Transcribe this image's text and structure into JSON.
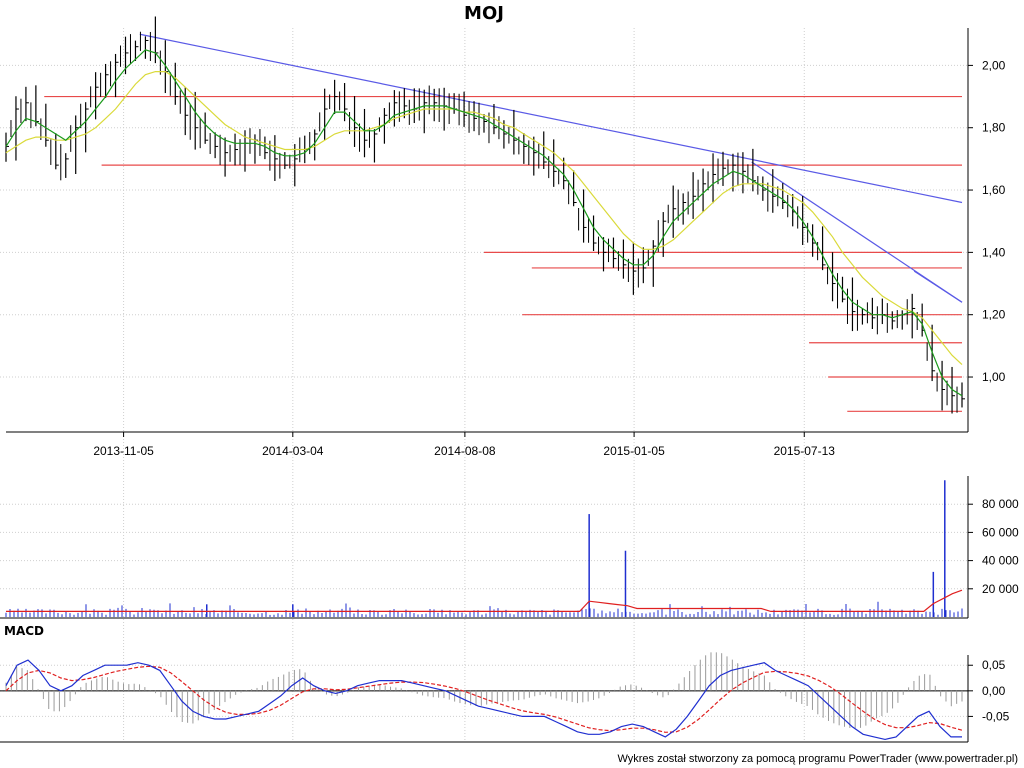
{
  "title": "MOJ",
  "footer": "Wykres został stworzony za pomocą programu PowerTrader (www.powertrader.pl)",
  "colors": {
    "price_bar": "#000000",
    "sma_short": "#1a9a1a",
    "sma_long": "#dada3a",
    "trendline": "#5a5ae6",
    "support_line": "#e84a4a",
    "volume_bar": "#1f2fd0",
    "volume_avg": "#e02020",
    "macd_line": "#1f2fd0",
    "signal_line": "#e02020",
    "histogram": "#9a9a9a"
  },
  "chart_data": [
    {
      "panel": "price",
      "type": "ohlc",
      "title": "MOJ",
      "x_tick_labels": [
        "2013-11-05",
        "2014-03-04",
        "2014-08-08",
        "2015-01-05",
        "2015-07-13"
      ],
      "y_tick_labels": [
        "2,00",
        "1,80",
        "1,60",
        "1,40",
        "1,20",
        "1,00"
      ],
      "ylim": [
        0.83,
        2.12
      ],
      "grid": true,
      "series": [
        {
          "role": "close_bars",
          "values": [
            1.74,
            1.86,
            1.88,
            1.82,
            1.76,
            1.68,
            1.7,
            1.8,
            1.86,
            1.93,
            1.97,
            2.01,
            2.04,
            2.06,
            2.08,
            2.04,
            1.98,
            1.9,
            1.84,
            1.8,
            1.76,
            1.74,
            1.72,
            1.73,
            1.75,
            1.76,
            1.72,
            1.7,
            1.68,
            1.7,
            1.73,
            1.78,
            1.86,
            1.9,
            1.86,
            1.8,
            1.76,
            1.78,
            1.84,
            1.88,
            1.87,
            1.86,
            1.88,
            1.88,
            1.87,
            1.86,
            1.84,
            1.83,
            1.82,
            1.8,
            1.78,
            1.76,
            1.74,
            1.72,
            1.69,
            1.66,
            1.63,
            1.56,
            1.48,
            1.43,
            1.4,
            1.38,
            1.36,
            1.34,
            1.35,
            1.42,
            1.5,
            1.54,
            1.56,
            1.58,
            1.62,
            1.65,
            1.67,
            1.68,
            1.66,
            1.63,
            1.6,
            1.58,
            1.56,
            1.53,
            1.48,
            1.43,
            1.36,
            1.3,
            1.25,
            1.21,
            1.2,
            1.19,
            1.2,
            1.18,
            1.2,
            1.22,
            1.15,
            1.02,
            0.96,
            0.94,
            0.93
          ]
        },
        {
          "role": "short_moving_average",
          "values": [
            1.74,
            1.79,
            1.83,
            1.82,
            1.8,
            1.78,
            1.76,
            1.79,
            1.82,
            1.86,
            1.9,
            1.95,
            1.99,
            2.02,
            2.05,
            2.04,
            2.0,
            1.95,
            1.9,
            1.85,
            1.81,
            1.78,
            1.76,
            1.75,
            1.75,
            1.75,
            1.74,
            1.72,
            1.71,
            1.71,
            1.72,
            1.75,
            1.8,
            1.85,
            1.85,
            1.82,
            1.79,
            1.79,
            1.81,
            1.84,
            1.85,
            1.86,
            1.87,
            1.87,
            1.87,
            1.86,
            1.85,
            1.84,
            1.83,
            1.81,
            1.79,
            1.77,
            1.75,
            1.73,
            1.71,
            1.68,
            1.65,
            1.6,
            1.54,
            1.48,
            1.44,
            1.41,
            1.38,
            1.36,
            1.36,
            1.39,
            1.45,
            1.5,
            1.53,
            1.56,
            1.59,
            1.62,
            1.64,
            1.66,
            1.65,
            1.63,
            1.61,
            1.59,
            1.57,
            1.54,
            1.5,
            1.45,
            1.39,
            1.33,
            1.28,
            1.24,
            1.22,
            1.2,
            1.2,
            1.19,
            1.2,
            1.21,
            1.17,
            1.08,
            1.0,
            0.96,
            0.94
          ]
        },
        {
          "role": "long_moving_average",
          "values": [
            1.72,
            1.74,
            1.76,
            1.77,
            1.77,
            1.76,
            1.76,
            1.77,
            1.78,
            1.8,
            1.83,
            1.86,
            1.9,
            1.94,
            1.97,
            1.98,
            1.98,
            1.96,
            1.93,
            1.9,
            1.87,
            1.84,
            1.81,
            1.79,
            1.77,
            1.76,
            1.75,
            1.74,
            1.73,
            1.73,
            1.73,
            1.74,
            1.76,
            1.78,
            1.79,
            1.79,
            1.79,
            1.8,
            1.81,
            1.83,
            1.84,
            1.85,
            1.86,
            1.86,
            1.86,
            1.86,
            1.85,
            1.85,
            1.84,
            1.83,
            1.81,
            1.8,
            1.78,
            1.76,
            1.74,
            1.72,
            1.69,
            1.66,
            1.62,
            1.58,
            1.54,
            1.5,
            1.46,
            1.43,
            1.41,
            1.41,
            1.42,
            1.44,
            1.47,
            1.5,
            1.53,
            1.56,
            1.59,
            1.61,
            1.62,
            1.62,
            1.62,
            1.61,
            1.6,
            1.58,
            1.56,
            1.53,
            1.49,
            1.45,
            1.4,
            1.36,
            1.32,
            1.29,
            1.26,
            1.24,
            1.22,
            1.21,
            1.19,
            1.15,
            1.11,
            1.07,
            1.04
          ]
        }
      ],
      "horizontal_levels": [
        {
          "value": 1.9,
          "x_start": 0.04,
          "x_end": 1.0
        },
        {
          "value": 1.68,
          "x_start": 0.1,
          "x_end": 1.0
        },
        {
          "value": 1.4,
          "x_start": 0.5,
          "x_end": 1.0
        },
        {
          "value": 1.35,
          "x_start": 0.55,
          "x_end": 1.0
        },
        {
          "value": 1.2,
          "x_start": 0.54,
          "x_end": 1.0
        },
        {
          "value": 1.11,
          "x_start": 0.84,
          "x_end": 1.0
        },
        {
          "value": 1.0,
          "x_start": 0.86,
          "x_end": 1.0
        },
        {
          "value": 0.89,
          "x_start": 0.88,
          "x_end": 1.0
        }
      ],
      "trendlines": [
        {
          "x0": 0.14,
          "y0": 2.1,
          "x1": 1.0,
          "y1": 1.56
        },
        {
          "x0": 0.78,
          "y0": 1.69,
          "x1": 1.0,
          "y1": 1.24
        },
        {
          "x0": 0.95,
          "y0": 1.34,
          "x1": 1.0,
          "y1": 1.24
        }
      ]
    },
    {
      "panel": "volume",
      "type": "bar",
      "y_tick_labels": [
        "80 000",
        "60 000",
        "40 000",
        "20 000"
      ],
      "ylim": [
        0,
        100000
      ],
      "grid": true,
      "spikes": [
        {
          "x": 0.61,
          "value": 73000
        },
        {
          "x": 0.648,
          "value": 47000
        },
        {
          "x": 0.3,
          "value": 9000
        },
        {
          "x": 0.21,
          "value": 9000
        },
        {
          "x": 0.97,
          "value": 32000
        },
        {
          "x": 0.982,
          "value": 97000
        }
      ]
    },
    {
      "panel": "macd",
      "type": "line",
      "title": "MACD",
      "y_tick_labels": [
        "0,05",
        "0,00",
        "-0,05"
      ],
      "ylim": [
        -0.1,
        0.07
      ],
      "grid": true,
      "series": [
        {
          "role": "macd",
          "values": [
            0.01,
            0.05,
            0.06,
            0.04,
            0.01,
            0.0,
            0.01,
            0.03,
            0.04,
            0.05,
            0.05,
            0.05,
            0.055,
            0.05,
            0.04,
            0.01,
            -0.02,
            -0.04,
            -0.05,
            -0.055,
            -0.055,
            -0.05,
            -0.045,
            -0.04,
            -0.025,
            -0.01,
            0.01,
            0.025,
            0.01,
            0.0,
            -0.005,
            0.0,
            0.01,
            0.015,
            0.02,
            0.02,
            0.02,
            0.015,
            0.01,
            0.005,
            0.0,
            -0.01,
            -0.02,
            -0.03,
            -0.035,
            -0.04,
            -0.045,
            -0.05,
            -0.05,
            -0.05,
            -0.06,
            -0.07,
            -0.08,
            -0.085,
            -0.085,
            -0.08,
            -0.07,
            -0.065,
            -0.07,
            -0.08,
            -0.09,
            -0.075,
            -0.05,
            -0.02,
            0.01,
            0.03,
            0.04,
            0.045,
            0.05,
            0.055,
            0.04,
            0.03,
            0.02,
            0.01,
            -0.01,
            -0.03,
            -0.05,
            -0.07,
            -0.085,
            -0.09,
            -0.095,
            -0.09,
            -0.07,
            -0.05,
            -0.04,
            -0.07,
            -0.09,
            -0.09
          ]
        },
        {
          "role": "signal",
          "values": [
            0.0,
            0.02,
            0.035,
            0.04,
            0.035,
            0.025,
            0.02,
            0.022,
            0.026,
            0.032,
            0.038,
            0.042,
            0.046,
            0.048,
            0.046,
            0.035,
            0.018,
            0.0,
            -0.018,
            -0.032,
            -0.042,
            -0.046,
            -0.046,
            -0.044,
            -0.038,
            -0.028,
            -0.015,
            -0.002,
            0.004,
            0.004,
            0.002,
            0.003,
            0.006,
            0.009,
            0.012,
            0.015,
            0.017,
            0.017,
            0.016,
            0.013,
            0.009,
            0.004,
            -0.003,
            -0.011,
            -0.019,
            -0.026,
            -0.033,
            -0.039,
            -0.043,
            -0.046,
            -0.051,
            -0.058,
            -0.065,
            -0.072,
            -0.076,
            -0.078,
            -0.076,
            -0.073,
            -0.073,
            -0.076,
            -0.081,
            -0.08,
            -0.071,
            -0.056,
            -0.037,
            -0.017,
            0.001,
            0.015,
            0.026,
            0.036,
            0.038,
            0.037,
            0.034,
            0.029,
            0.02,
            0.008,
            -0.007,
            -0.024,
            -0.04,
            -0.055,
            -0.066,
            -0.072,
            -0.072,
            -0.068,
            -0.062,
            -0.064,
            -0.071,
            -0.077
          ]
        }
      ]
    }
  ]
}
